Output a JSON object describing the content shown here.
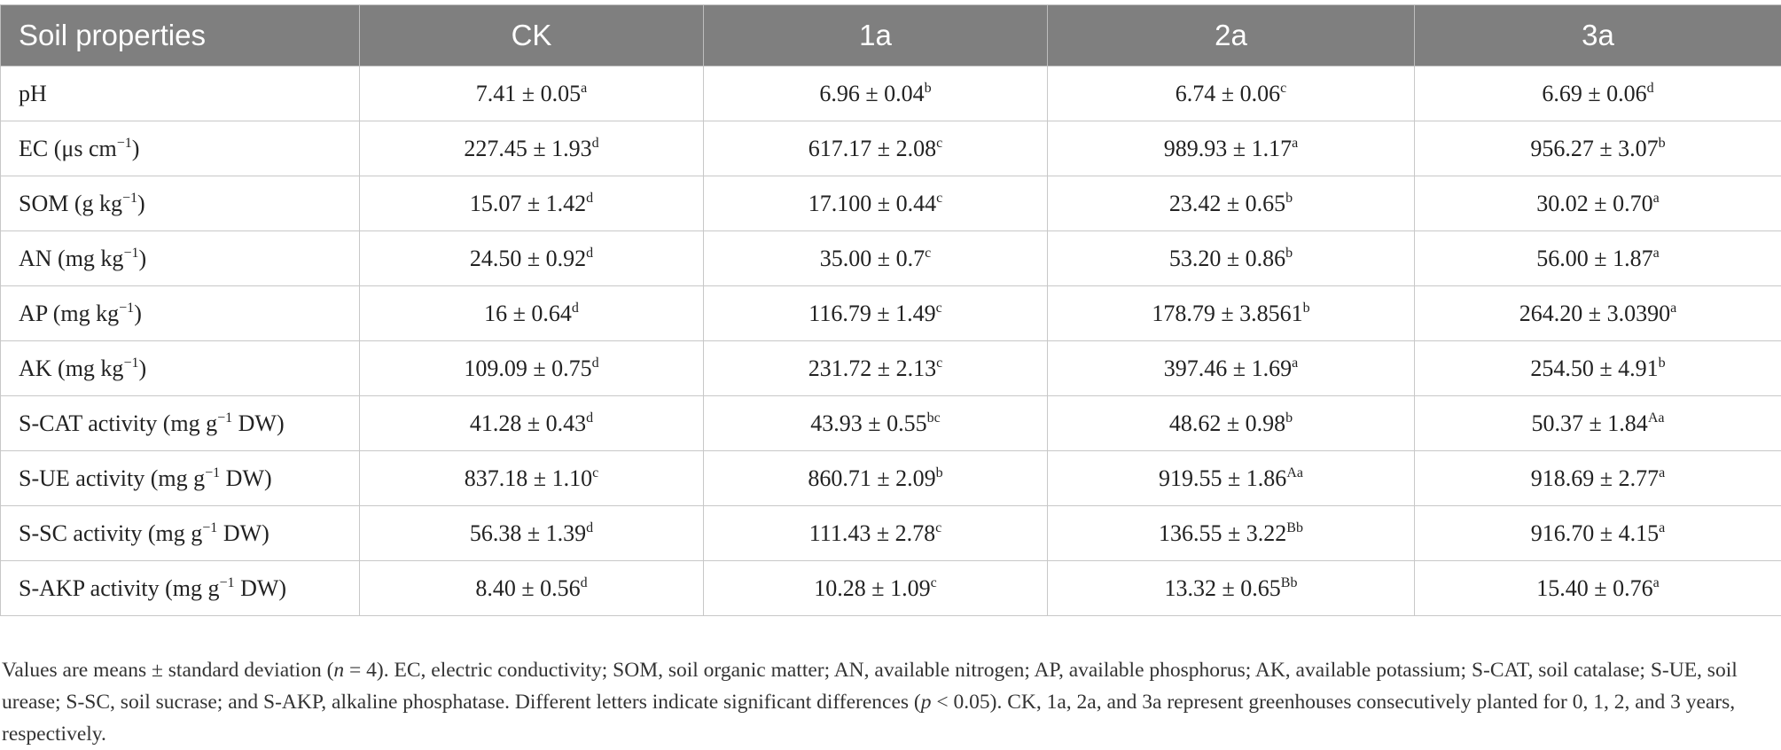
{
  "table": {
    "header": [
      "Soil properties",
      "CK",
      "1a",
      "2a",
      "3a"
    ],
    "rows": [
      [
        {
          "text": "pH"
        },
        {
          "value": "7.41 ± 0.05",
          "sup": "a"
        },
        {
          "value": "6.96 ± 0.04",
          "sup": "b"
        },
        {
          "value": "6.74 ± 0.06",
          "sup": "c"
        },
        {
          "value": "6.69 ± 0.06",
          "sup": "d"
        }
      ],
      [
        {
          "text": "EC (μs cm",
          "sup": "−1",
          "after": ")"
        },
        {
          "value": "227.45 ± 1.93",
          "sup": "d"
        },
        {
          "value": "617.17 ± 2.08",
          "sup": "c"
        },
        {
          "value": "989.93 ± 1.17",
          "sup": "a"
        },
        {
          "value": "956.27 ± 3.07",
          "sup": "b"
        }
      ],
      [
        {
          "text": "SOM (g kg",
          "sup": "−1",
          "after": ")"
        },
        {
          "value": "15.07 ± 1.42",
          "sup": "d"
        },
        {
          "value": "17.100 ± 0.44",
          "sup": "c"
        },
        {
          "value": "23.42 ± 0.65",
          "sup": "b"
        },
        {
          "value": "30.02 ± 0.70",
          "sup": "a"
        }
      ],
      [
        {
          "text": "AN (mg kg",
          "sup": "−1",
          "after": ")"
        },
        {
          "value": "24.50 ± 0.92",
          "sup": "d"
        },
        {
          "value": "35.00 ± 0.7",
          "sup": "c"
        },
        {
          "value": "53.20 ± 0.86",
          "sup": "b"
        },
        {
          "value": "56.00 ± 1.87",
          "sup": "a"
        }
      ],
      [
        {
          "text": "AP (mg kg",
          "sup": "−1",
          "after": ")"
        },
        {
          "value": "16 ± 0.64",
          "sup": "d"
        },
        {
          "value": "116.79 ± 1.49",
          "sup": "c"
        },
        {
          "value": "178.79 ± 3.8561",
          "sup": "b"
        },
        {
          "value": "264.20 ± 3.0390",
          "sup": "a"
        }
      ],
      [
        {
          "text": "AK (mg kg",
          "sup": "−1",
          "after": ")"
        },
        {
          "value": "109.09 ± 0.75",
          "sup": "d"
        },
        {
          "value": "231.72 ± 2.13",
          "sup": "c"
        },
        {
          "value": "397.46 ± 1.69",
          "sup": "a"
        },
        {
          "value": "254.50 ± 4.91",
          "sup": "b"
        }
      ],
      [
        {
          "text": "S-CAT activity (mg g",
          "sup": "−1",
          "after": " DW)"
        },
        {
          "value": "41.28 ± 0.43",
          "sup": "d"
        },
        {
          "value": "43.93 ± 0.55",
          "sup": "bc"
        },
        {
          "value": "48.62 ± 0.98",
          "sup": "b"
        },
        {
          "value": "50.37 ± 1.84",
          "sup": "Aa"
        }
      ],
      [
        {
          "text": "S-UE activity (mg g",
          "sup": "−1",
          "after": " DW)"
        },
        {
          "value": "837.18 ± 1.10",
          "sup": "c"
        },
        {
          "value": "860.71 ± 2.09",
          "sup": "b"
        },
        {
          "value": "919.55 ± 1.86",
          "sup": "Aa"
        },
        {
          "value": "918.69 ± 2.77",
          "sup": "a"
        }
      ],
      [
        {
          "text": "S-SC activity (mg g",
          "sup": "−1",
          "after": " DW)"
        },
        {
          "value": "56.38 ± 1.39",
          "sup": "d"
        },
        {
          "value": "111.43 ± 2.78",
          "sup": "c"
        },
        {
          "value": "136.55 ± 3.22",
          "sup": "Bb"
        },
        {
          "value": "916.70 ± 4.15",
          "sup": "a"
        }
      ],
      [
        {
          "text": "S-AKP activity (mg g",
          "sup": "−1",
          "after": " DW)"
        },
        {
          "value": "8.40 ± 0.56",
          "sup": "d"
        },
        {
          "value": "10.28 ± 1.09",
          "sup": "c"
        },
        {
          "value": "13.32 ± 0.65",
          "sup": "Bb"
        },
        {
          "value": "15.40 ± 0.76",
          "sup": "a"
        }
      ]
    ]
  },
  "footnote": [
    "Values are means ± standard deviation (",
    "n",
    " = 4). EC, electric conductivity; SOM, soil organic matter; AN, available nitrogen; AP, available phosphorus; AK, available potassium; S-CAT, soil catalase; S-UE, soil urease; S-SC, soil sucrase; and S-AKP, alkaline phosphatase. Different letters indicate significant differences (",
    "p",
    " < 0.05). CK, 1a, 2a, and 3a represent greenhouses consecutively planted for 0, 1, 2, and 3 years, respectively."
  ]
}
